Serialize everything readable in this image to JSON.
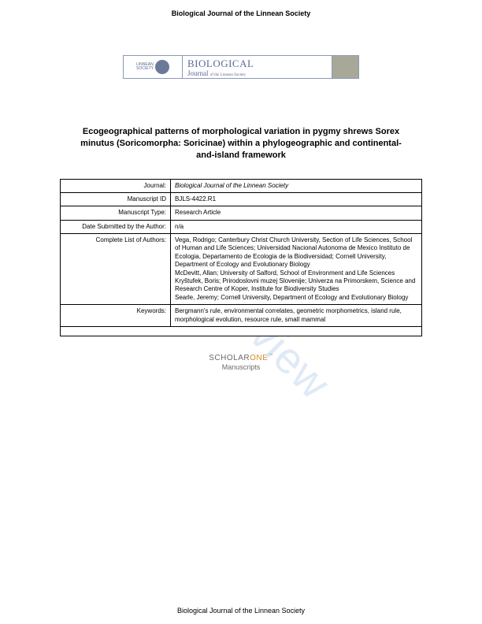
{
  "header": {
    "journal_name": "Biological Journal of the Linnean Society"
  },
  "banner": {
    "society_line1": "LINNEAN",
    "society_line2": "SOCIETY",
    "society_sub": "",
    "title_big": "BIOLOGICAL",
    "title_sub_main": "Journal",
    "title_sub_small": "of the Linnean Society",
    "colors": {
      "border": "#8a99b8",
      "text": "#5a6a98",
      "right_panel": "#a8a898"
    }
  },
  "article": {
    "title": "Ecogeographical patterns of morphological variation in pygmy shrews Sorex minutus (Soricomorpha: Soricinae) within a phylogeographic and continental-and-island framework"
  },
  "watermark": {
    "text": "For Review",
    "color": "#c5daf0"
  },
  "metadata": {
    "rows": [
      {
        "label": "Journal:",
        "value": "Biological Journal of the Linnean Society",
        "italic": true
      },
      {
        "label": "Manuscript ID",
        "value": "BJLS-4422.R1",
        "italic": false
      },
      {
        "label": "Manuscript Type:",
        "value": "Research Article",
        "italic": false
      },
      {
        "label": "Date Submitted by the Author:",
        "value": "n/a",
        "italic": false
      },
      {
        "label": "Complete List of Authors:",
        "value": "Vega, Rodrigo; Canterbury Christ Church University, Section of Life Sciences, School of Human and Life Sciences; Universidad Nacional Autonoma de Mexico Instituto de Ecologia, Departamento de Ecologia de la Biodiversidad; Cornell University, Department of Ecology and Evolutionary Biology\nMcDevitt, Allan; University of Salford, School of Environment and Life Sciences\nKryštufek, Boris; Prirodoslovni muzej Slovenije; Univerza na Primorskem, Science and Research Centre of Koper, Institute for Biodiversity Studies\nSearle, Jeremy; Cornell University, Department of Ecology and Evolutionary Biology",
        "italic": false
      },
      {
        "label": "Keywords:",
        "value": "Bergmann's rule, environmental correlates, geometric morphometrics, island rule, morphological evolution, resource rule, small mammal",
        "italic": false
      }
    ]
  },
  "scholar": {
    "brand_prefix": "SCHOLAR",
    "brand_suffix": "ONE",
    "tm": "™",
    "sub": "Manuscripts",
    "colors": {
      "grey": "#6a6a6a",
      "orange": "#d68a2a"
    }
  },
  "footer": {
    "text": "Biological Journal of the Linnean Society"
  }
}
